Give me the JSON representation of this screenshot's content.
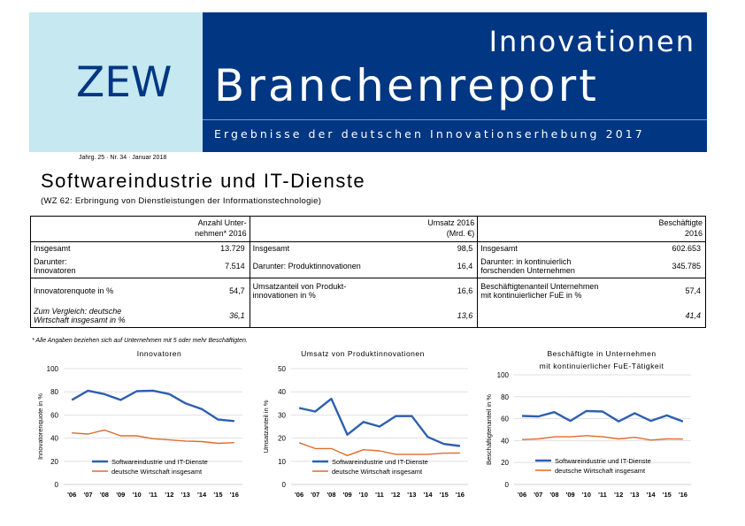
{
  "header": {
    "logo": "ZEW",
    "series": "Innovationen",
    "report": "Branchenreport",
    "subtitle": "Ergebnisse der deutschen Innovationserhebung 2017",
    "issue": "Jahrg. 25 · Nr. 34 · Januar 2018",
    "colors": {
      "navy": "#003682",
      "light_blue": "#c5e8f1"
    }
  },
  "document": {
    "title": "Softwareindustrie und IT-Dienste",
    "subtitle": "(WZ 62: Erbringung von Dienstleistungen der Informationstechnologie)"
  },
  "kpi": {
    "headers": [
      "Anzahl Unternehmen* 2016",
      "Umsatz 2016 (Mrd. €)",
      "Beschäftigte 2016"
    ],
    "header_lines": [
      [
        "Anzahl Unter-",
        "nehmen* 2016"
      ],
      [
        "Umsatz 2016",
        "(Mrd. €)"
      ],
      [
        "Beschäftigte",
        "2016"
      ]
    ],
    "rows": [
      [
        {
          "label": "Insgesamt",
          "value": "13.729"
        },
        {
          "label": "Insgesamt",
          "value": "98,5"
        },
        {
          "label": "Insgesamt",
          "value": "602.653"
        }
      ],
      [
        {
          "label": "Darunter: Innovatoren",
          "value": "7.514"
        },
        {
          "label": "Darunter: Produktinnovationen",
          "value": "16,4"
        },
        {
          "label": "Darunter: in kontinuierlich forschenden Unternehmen",
          "value": "345.785"
        }
      ],
      [
        {
          "label": "Innovatorenquote in %",
          "value": "54,7"
        },
        {
          "label": "Umsatzanteil von Produktinnovationen in %",
          "value": "16,6"
        },
        {
          "label": "Beschäftigtenanteil Unternehmen mit kontinuierlicher FuE in %",
          "value": "57,4"
        }
      ],
      [
        {
          "label": "Zum Vergleich: deutsche Wirtschaft insgesamt in %",
          "value": "36,1"
        },
        {
          "label": "",
          "value": "13,6"
        },
        {
          "label": "",
          "value": "41,4"
        }
      ]
    ],
    "label_lines": {
      "r1": [
        [
          "Darunter:",
          "Innovatoren"
        ],
        [
          "Darunter: Produktinnovationen"
        ],
        [
          "Darunter: in kontinuierlich",
          "forschenden Unternehmen"
        ]
      ],
      "r2": [
        [
          "Innovatorenquote in %"
        ],
        [
          "Umsatzanteil von Produkt-",
          "innovationen in %"
        ],
        [
          "Beschäftigtenanteil Unternehmen",
          "mit kontinuierlicher FuE in %"
        ]
      ],
      "r3": [
        [
          "Zum Vergleich: deutsche",
          "Wirtschaft insgesamt in %"
        ]
      ]
    }
  },
  "footnote": "* Alle Angaben beziehen sich auf Unternehmen mit 5 oder mehr Beschäftigten.",
  "chart_data": [
    {
      "type": "line",
      "title": "Innovatoren",
      "ylabel": "Innovatorenquote in %",
      "xlabel": "",
      "x": [
        "'06",
        "'07",
        "'08",
        "'09",
        "'10",
        "'11",
        "'12",
        "'13",
        "'14",
        "'15",
        "'16"
      ],
      "ylim": [
        0,
        100
      ],
      "yticks": [
        0,
        20,
        40,
        60,
        80,
        100
      ],
      "grid": "horizontal",
      "legend": "bottom-left",
      "series": [
        {
          "name": "Softwareindustrie und IT-Dienste",
          "color": "#2e5fb0",
          "values": [
            73,
            81,
            78,
            73,
            80.5,
            81,
            78,
            70,
            65,
            56,
            54.7
          ]
        },
        {
          "name": "deutsche Wirtschaft insgesamt",
          "color": "#e06b2c",
          "values": [
            44.5,
            43.5,
            47,
            42,
            42,
            39.5,
            38.5,
            37.5,
            37,
            35.5,
            36.1
          ]
        }
      ]
    },
    {
      "type": "line",
      "title": "Umsatz von Produktinnovationen",
      "ylabel": "Umsatzanteil in %",
      "xlabel": "",
      "x": [
        "'06",
        "'07",
        "'08",
        "'09",
        "'10",
        "'11",
        "'12",
        "'13",
        "'14",
        "'15",
        "'16"
      ],
      "ylim": [
        0,
        50
      ],
      "yticks": [
        0,
        10,
        20,
        30,
        40,
        50
      ],
      "grid": "horizontal",
      "legend": "bottom-left",
      "series": [
        {
          "name": "Softwareindustrie und IT-Dienste",
          "color": "#2e5fb0",
          "values": [
            33,
            31.5,
            37,
            21.5,
            27,
            25,
            29.5,
            29.5,
            20.5,
            17.5,
            16.6
          ]
        },
        {
          "name": "deutsche Wirtschaft insgesamt",
          "color": "#e06b2c",
          "values": [
            18,
            15.5,
            15.5,
            12.5,
            15,
            14.5,
            13,
            13,
            13,
            13.5,
            13.6
          ]
        }
      ]
    },
    {
      "type": "line",
      "title": "Beschäftigte in Unternehmen mit kontinuierlicher FuE-Tätigkeit",
      "title_lines": [
        "Beschäftigte in Unternehmen",
        "mit kontinuierlicher FuE-Tätigkeit"
      ],
      "ylabel": "Beschäftigtenanteil in %",
      "xlabel": "",
      "x": [
        "'06",
        "'07",
        "'08",
        "'09",
        "'10",
        "'11",
        "'12",
        "'13",
        "'14",
        "'15",
        "'16"
      ],
      "ylim": [
        0,
        100
      ],
      "yticks": [
        0,
        20,
        40,
        60,
        80,
        100
      ],
      "grid": "horizontal",
      "legend": "bottom-left",
      "series": [
        {
          "name": "Softwareindustrie und IT-Dienste",
          "color": "#2e5fb0",
          "values": [
            62.5,
            62,
            66,
            58,
            67,
            66.5,
            57.5,
            65,
            58,
            63,
            57.4
          ]
        },
        {
          "name": "deutsche Wirtschaft insgesamt",
          "color": "#e06b2c",
          "values": [
            41,
            41.5,
            43.5,
            43.5,
            44.5,
            43.5,
            41.5,
            43,
            40.5,
            41.5,
            41.4
          ]
        }
      ]
    }
  ]
}
